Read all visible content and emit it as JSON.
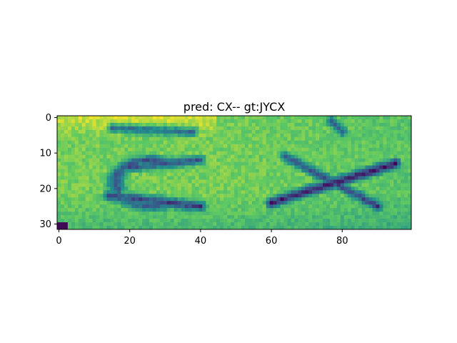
{
  "chart_data": {
    "type": "heatmap",
    "title": "pred: CX-- gt:JYCX",
    "xlabel": "",
    "ylabel": "",
    "image_shape": [
      32,
      100
    ],
    "xlim": [
      -0.5,
      99.5
    ],
    "ylim": [
      31.5,
      -0.5
    ],
    "x_ticks": [
      0,
      20,
      40,
      60,
      80
    ],
    "y_ticks": [
      0,
      10,
      20,
      30
    ],
    "colormap": "viridis",
    "colormap_stops": [
      "#440154",
      "#3b528b",
      "#21918c",
      "#5ec962",
      "#fde725"
    ]
  }
}
